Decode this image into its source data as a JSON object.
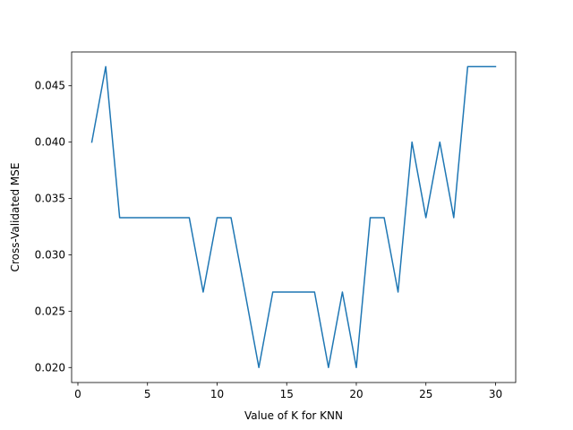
{
  "chart_data": {
    "type": "line",
    "xlabel": "Value of K for KNN",
    "ylabel": "Cross-Validated MSE",
    "xlim": [
      -0.45,
      31.45
    ],
    "ylim": [
      0.01867,
      0.048
    ],
    "xticks": [
      0,
      5,
      10,
      15,
      20,
      25,
      30
    ],
    "xtick_labels": [
      "0",
      "5",
      "10",
      "15",
      "20",
      "25",
      "30"
    ],
    "yticks": [
      0.02,
      0.025,
      0.03,
      0.035,
      0.04,
      0.045
    ],
    "ytick_labels": [
      "0.020",
      "0.025",
      "0.030",
      "0.035",
      "0.040",
      "0.045"
    ],
    "grid": false,
    "series": [
      {
        "color": "#1f77b4",
        "x": [
          1,
          2,
          3,
          4,
          5,
          6,
          7,
          8,
          9,
          10,
          11,
          12,
          13,
          14,
          15,
          16,
          17,
          18,
          19,
          20,
          21,
          22,
          23,
          24,
          25,
          26,
          27,
          28,
          29,
          30
        ],
        "y": [
          0.04,
          0.0467,
          0.0333,
          0.0333,
          0.0333,
          0.0333,
          0.0333,
          0.0333,
          0.0267,
          0.0333,
          0.0333,
          0.0267,
          0.02,
          0.0267,
          0.0267,
          0.0267,
          0.0267,
          0.02,
          0.0267,
          0.02,
          0.0333,
          0.0333,
          0.0267,
          0.04,
          0.0333,
          0.04,
          0.0333,
          0.0467,
          0.0467,
          0.0467
        ]
      }
    ]
  }
}
